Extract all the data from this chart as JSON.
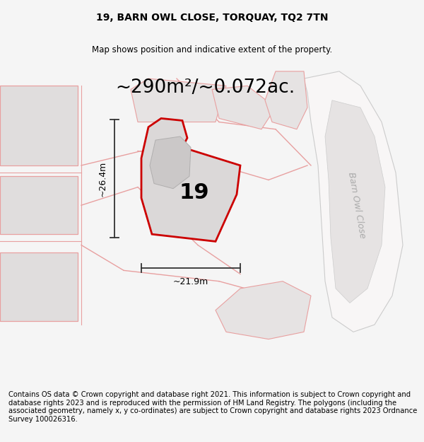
{
  "title": "19, BARN OWL CLOSE, TORQUAY, TQ2 7TN",
  "subtitle": "Map shows position and indicative extent of the property.",
  "area_text": "~290m²/~0.072ac.",
  "dim_width": "~21.9m",
  "dim_height": "~26.4m",
  "label_number": "19",
  "road_label": "Barn Owl Close",
  "footer": "Contains OS data © Crown copyright and database right 2021. This information is subject to Crown copyright and database rights 2023 and is reproduced with the permission of HM Land Registry. The polygons (including the associated geometry, namely x, y co-ordinates) are subject to Crown copyright and database rights 2023 Ordnance Survey 100026316.",
  "bg_color": "#f5f5f5",
  "map_bg": "#f2f0f0",
  "title_fontsize": 10,
  "subtitle_fontsize": 8.5,
  "area_fontsize": 19,
  "label_fontsize": 22,
  "footer_fontsize": 7.2,
  "road_label_fontsize": 9,
  "dim_line_color": "#333333",
  "plot_fill": "#dbd8d8",
  "plot_edge": "#cc0000",
  "nearby_fill": "#e6e3e3",
  "nearby_edge": "#e8a0a0",
  "block_fill": "#e0dddd",
  "block_edge": "#e8a0a0",
  "road_fill": "#f8f6f6",
  "road_edge": "#cccccc",
  "building_fill": "#cbc8c8",
  "building_edge": "#b0aeae"
}
